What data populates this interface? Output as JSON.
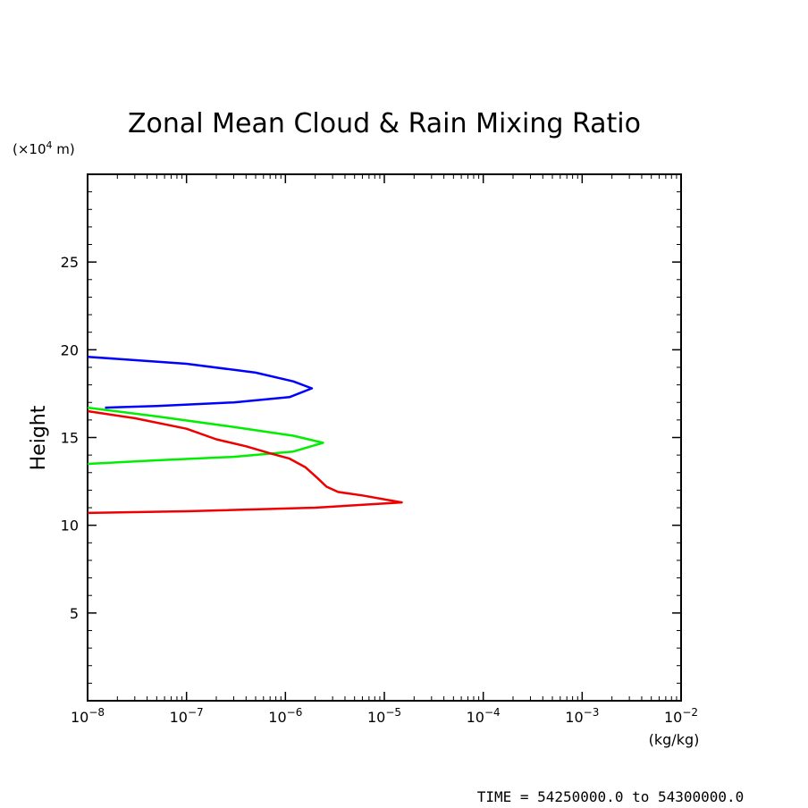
{
  "chart_data": {
    "type": "line",
    "title": "Zonal Mean Cloud & Rain Mixing Ratio",
    "ylabel": "Height",
    "y_unit": "(×10",
    "y_unit_exp": "4",
    "y_unit_tail": " m)",
    "x_unit": "(kg/kg)",
    "x_scale": "log",
    "xlim": [
      1e-08,
      0.01
    ],
    "ylim": [
      0,
      30
    ],
    "x_ticks": [
      1e-08,
      1e-07,
      1e-06,
      1e-05,
      0.0001,
      0.001,
      0.01
    ],
    "x_tick_exponents": [
      "−8",
      "−7",
      "−6",
      "−5",
      "−4",
      "−3",
      "−2"
    ],
    "x_tick_base": "10",
    "y_ticks": [
      5,
      10,
      15,
      20,
      25
    ],
    "y_tick_labels": [
      "5",
      "10",
      "15",
      "20",
      "25"
    ],
    "grid": false,
    "series": [
      {
        "color": "#0000ff",
        "points": [
          [
            1e-08,
            19.6
          ],
          [
            1e-07,
            19.2
          ],
          [
            5e-07,
            18.7
          ],
          [
            1.2e-06,
            18.2
          ],
          [
            1.85e-06,
            17.8
          ],
          [
            1.1e-06,
            17.3
          ],
          [
            3e-07,
            17.0
          ],
          [
            5e-08,
            16.8
          ],
          [
            1.5e-08,
            16.7
          ]
        ]
      },
      {
        "color": "#00ee00",
        "points": [
          [
            1e-08,
            16.7
          ],
          [
            5e-08,
            16.2
          ],
          [
            3e-07,
            15.6
          ],
          [
            1.2e-06,
            15.1
          ],
          [
            2.4e-06,
            14.7
          ],
          [
            1.2e-06,
            14.2
          ],
          [
            3e-07,
            13.9
          ],
          [
            5e-08,
            13.7
          ],
          [
            1e-08,
            13.5
          ]
        ]
      },
      {
        "color": "#ee0000",
        "points": [
          [
            1e-08,
            16.5
          ],
          [
            3e-08,
            16.1
          ],
          [
            1e-07,
            15.5
          ],
          [
            2e-07,
            14.9
          ],
          [
            4e-07,
            14.5
          ],
          [
            7e-07,
            14.1
          ],
          [
            1.1e-06,
            13.8
          ],
          [
            1.6e-06,
            13.3
          ],
          [
            2.1e-06,
            12.7
          ],
          [
            2.6e-06,
            12.2
          ],
          [
            3.4e-06,
            11.9
          ],
          [
            6e-06,
            11.7
          ],
          [
            1.5e-05,
            11.3
          ],
          [
            2e-06,
            11.0
          ],
          [
            1e-07,
            10.8
          ],
          [
            1e-08,
            10.7
          ]
        ]
      }
    ],
    "annotation": "TIME = 54250000.0 to 54300000.0"
  }
}
